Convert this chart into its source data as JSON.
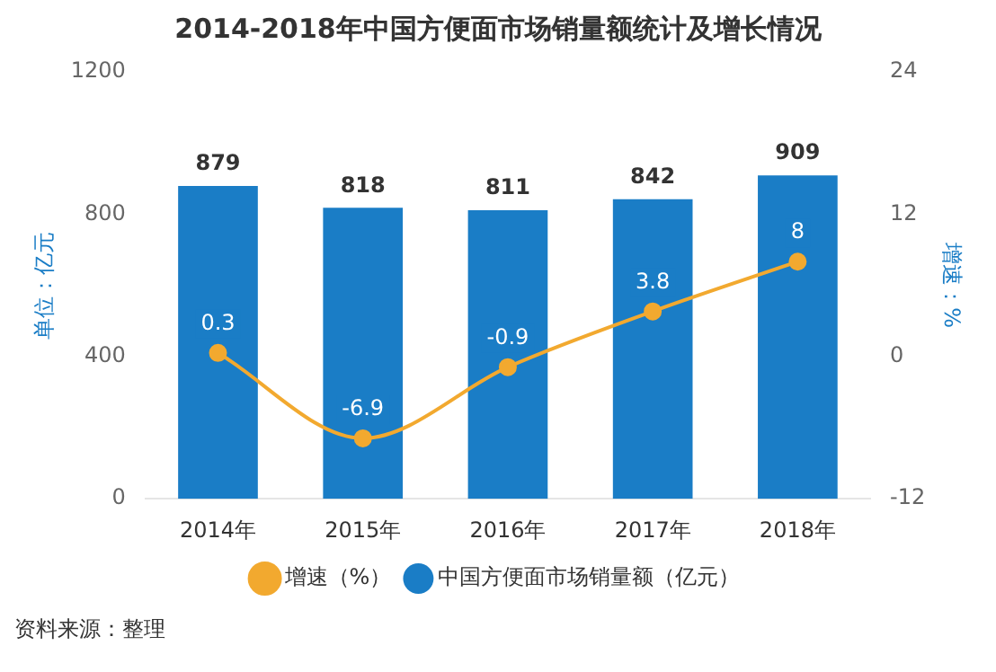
{
  "chart_data": {
    "type": "bar",
    "title": "2014-2018年中国方便面市场销量额统计及增长情况",
    "categories": [
      "2014年",
      "2015年",
      "2016年",
      "2017年",
      "2018年"
    ],
    "series": [
      {
        "name": "中国方便面市场销量额（亿元）",
        "color": "#1a7dc6",
        "values": [
          879,
          818,
          811,
          842,
          909
        ]
      },
      {
        "name": "增速（%）",
        "type": "line",
        "axis": "y2",
        "color": "#f2a92f",
        "values": [
          0.3,
          -6.9,
          -0.9,
          3.8,
          8
        ]
      }
    ],
    "ylabel": "单位：亿元",
    "y2label": "增速：%",
    "ylim": [
      0,
      1200
    ],
    "yticks": [
      0,
      400,
      800,
      1200
    ],
    "y2lim": [
      -12,
      24
    ],
    "y2ticks": [
      -12,
      0,
      12,
      24
    ],
    "data_labels": true,
    "legend": "bottom",
    "marker": "circle",
    "grid": false,
    "annotations": [
      "资料来源：整理"
    ]
  }
}
